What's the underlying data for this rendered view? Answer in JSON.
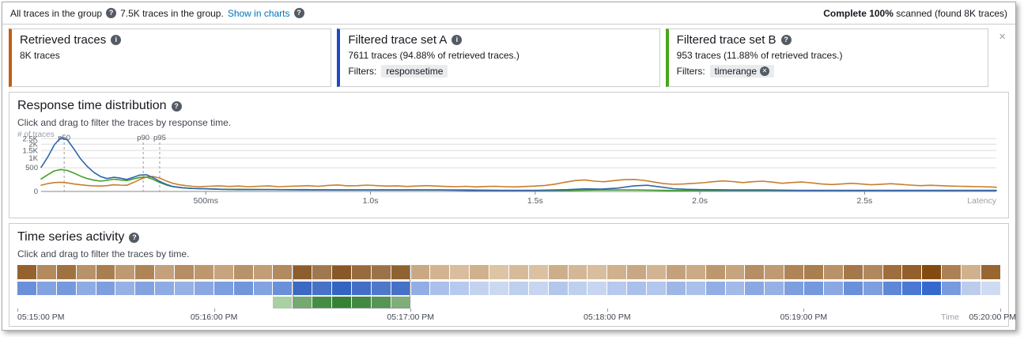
{
  "icons": {
    "help": "?",
    "info": "i",
    "close": "×",
    "remove": "✕"
  },
  "colors": {
    "link": "#0073bb",
    "retrieved_accent": "#c05f15",
    "set_a_accent": "#1d49c6",
    "set_b_accent": "#4aa51e",
    "orange_line": "#c87e2e",
    "blue_line": "#2f66ad",
    "green_line": "#43a02c",
    "grid": "#dddddd",
    "axis": "#888888"
  },
  "top_bar": {
    "group_label": "All traces in the group",
    "traces_text": "7.5K traces in the group.",
    "show_in_charts": "Show in charts",
    "scan_complete": "Complete 100%",
    "scan_detail": " scanned (found 8K traces)"
  },
  "cards": [
    {
      "title": "Retrieved traces",
      "count_text": "8K traces"
    },
    {
      "title": "Filtered trace set A",
      "count_text": "7611 traces (94.88% of retrieved traces.)",
      "filters_label": "Filters:",
      "filter_tag": "responsetime"
    },
    {
      "title": "Filtered trace set B",
      "count_text": "953 traces (11.88% of retrieved traces.)",
      "filters_label": "Filters:",
      "filter_tag": "timerange"
    }
  ],
  "response_chart": {
    "type": "line",
    "title": "Response time distribution",
    "subtitle": "Click and drag to filter the traces by response time.",
    "y_axis_label": "# of traces",
    "x_axis_label": "Latency",
    "y_scale": "sqrt",
    "y_max": 2750,
    "x_max_ms": 2900,
    "y_ticks": [
      {
        "value": 0,
        "label": "0"
      },
      {
        "value": 500,
        "label": "500"
      },
      {
        "value": 1000,
        "label": "1K"
      },
      {
        "value": 1500,
        "label": "1.5K"
      },
      {
        "value": 2000,
        "label": "2K"
      },
      {
        "value": 2500,
        "label": "2.5K"
      }
    ],
    "x_ticks": [
      {
        "ms": 500,
        "label": "500ms"
      },
      {
        "ms": 1000,
        "label": "1.0s"
      },
      {
        "ms": 1500,
        "label": "1.5s"
      },
      {
        "ms": 2000,
        "label": "2.0s"
      },
      {
        "ms": 2500,
        "label": "2.5s"
      }
    ],
    "percentiles": [
      {
        "label": "p50",
        "ms": 70
      },
      {
        "label": "p90",
        "ms": 310
      },
      {
        "label": "p95",
        "ms": 360
      }
    ],
    "series": [
      {
        "name": "retrieved",
        "color_key": "orange_line",
        "points": [
          [
            0,
            35
          ],
          [
            20,
            55
          ],
          [
            40,
            70
          ],
          [
            60,
            75
          ],
          [
            80,
            65
          ],
          [
            100,
            50
          ],
          [
            120,
            40
          ],
          [
            140,
            32
          ],
          [
            160,
            28
          ],
          [
            180,
            26
          ],
          [
            200,
            30
          ],
          [
            220,
            40
          ],
          [
            240,
            36
          ],
          [
            260,
            34
          ],
          [
            280,
            70
          ],
          [
            300,
            130
          ],
          [
            320,
            185
          ],
          [
            340,
            200
          ],
          [
            360,
            160
          ],
          [
            380,
            100
          ],
          [
            400,
            60
          ],
          [
            420,
            40
          ],
          [
            440,
            30
          ],
          [
            460,
            24
          ],
          [
            480,
            20
          ],
          [
            510,
            24
          ],
          [
            540,
            28
          ],
          [
            570,
            22
          ],
          [
            600,
            26
          ],
          [
            630,
            20
          ],
          [
            660,
            24
          ],
          [
            690,
            28
          ],
          [
            720,
            20
          ],
          [
            750,
            24
          ],
          [
            780,
            26
          ],
          [
            810,
            30
          ],
          [
            840,
            24
          ],
          [
            870,
            32
          ],
          [
            900,
            38
          ],
          [
            930,
            28
          ],
          [
            960,
            30
          ],
          [
            990,
            36
          ],
          [
            1020,
            30
          ],
          [
            1050,
            26
          ],
          [
            1080,
            28
          ],
          [
            1110,
            22
          ],
          [
            1140,
            26
          ],
          [
            1170,
            30
          ],
          [
            1200,
            26
          ],
          [
            1230,
            22
          ],
          [
            1260,
            20
          ],
          [
            1290,
            24
          ],
          [
            1320,
            18
          ],
          [
            1350,
            22
          ],
          [
            1380,
            24
          ],
          [
            1410,
            20
          ],
          [
            1440,
            18
          ],
          [
            1470,
            22
          ],
          [
            1500,
            26
          ],
          [
            1530,
            32
          ],
          [
            1560,
            48
          ],
          [
            1590,
            75
          ],
          [
            1620,
            105
          ],
          [
            1650,
            120
          ],
          [
            1680,
            95
          ],
          [
            1710,
            85
          ],
          [
            1740,
            105
          ],
          [
            1770,
            125
          ],
          [
            1800,
            130
          ],
          [
            1830,
            110
          ],
          [
            1860,
            80
          ],
          [
            1890,
            55
          ],
          [
            1920,
            45
          ],
          [
            1950,
            50
          ],
          [
            1980,
            58
          ],
          [
            2010,
            68
          ],
          [
            2040,
            85
          ],
          [
            2070,
            100
          ],
          [
            2100,
            88
          ],
          [
            2130,
            70
          ],
          [
            2160,
            85
          ],
          [
            2190,
            95
          ],
          [
            2220,
            78
          ],
          [
            2250,
            60
          ],
          [
            2280,
            72
          ],
          [
            2310,
            80
          ],
          [
            2340,
            65
          ],
          [
            2370,
            50
          ],
          [
            2400,
            42
          ],
          [
            2430,
            50
          ],
          [
            2460,
            60
          ],
          [
            2490,
            50
          ],
          [
            2520,
            40
          ],
          [
            2550,
            46
          ],
          [
            2580,
            54
          ],
          [
            2610,
            44
          ],
          [
            2640,
            36
          ],
          [
            2670,
            30
          ],
          [
            2700,
            34
          ],
          [
            2730,
            30
          ],
          [
            2760,
            26
          ],
          [
            2790,
            24
          ],
          [
            2820,
            22
          ],
          [
            2850,
            20
          ],
          [
            2880,
            18
          ],
          [
            2900,
            16
          ]
        ]
      },
      {
        "name": "set-b",
        "color_key": "green_line",
        "points": [
          [
            0,
            140
          ],
          [
            20,
            250
          ],
          [
            40,
            380
          ],
          [
            60,
            430
          ],
          [
            80,
            395
          ],
          [
            100,
            300
          ],
          [
            120,
            210
          ],
          [
            140,
            150
          ],
          [
            160,
            115
          ],
          [
            180,
            95
          ],
          [
            200,
            110
          ],
          [
            220,
            135
          ],
          [
            240,
            120
          ],
          [
            260,
            105
          ],
          [
            280,
            140
          ],
          [
            300,
            175
          ],
          [
            320,
            185
          ],
          [
            340,
            130
          ],
          [
            360,
            70
          ],
          [
            380,
            38
          ],
          [
            400,
            20
          ],
          [
            430,
            12
          ],
          [
            460,
            8
          ],
          [
            500,
            6
          ],
          [
            550,
            4
          ],
          [
            600,
            4
          ],
          [
            700,
            3
          ],
          [
            800,
            3
          ],
          [
            900,
            2
          ],
          [
            1000,
            2
          ],
          [
            1100,
            2
          ],
          [
            1200,
            2
          ],
          [
            1300,
            2
          ],
          [
            1400,
            1
          ],
          [
            1500,
            1
          ],
          [
            1600,
            1
          ],
          [
            1700,
            2
          ],
          [
            1800,
            2
          ],
          [
            1900,
            1
          ],
          [
            2000,
            1
          ],
          [
            2100,
            1
          ],
          [
            2200,
            1
          ],
          [
            2300,
            1
          ],
          [
            2400,
            1
          ],
          [
            2500,
            1
          ],
          [
            2600,
            1
          ],
          [
            2700,
            1
          ],
          [
            2800,
            1
          ],
          [
            2900,
            1
          ]
        ]
      },
      {
        "name": "set-a",
        "color_key": "blue_line",
        "points": [
          [
            0,
            520
          ],
          [
            20,
            1050
          ],
          [
            40,
            1950
          ],
          [
            60,
            2600
          ],
          [
            80,
            2380
          ],
          [
            100,
            1600
          ],
          [
            120,
            950
          ],
          [
            140,
            560
          ],
          [
            160,
            330
          ],
          [
            180,
            200
          ],
          [
            200,
            150
          ],
          [
            220,
            180
          ],
          [
            240,
            160
          ],
          [
            260,
            130
          ],
          [
            280,
            180
          ],
          [
            300,
            240
          ],
          [
            320,
            250
          ],
          [
            340,
            170
          ],
          [
            360,
            90
          ],
          [
            380,
            45
          ],
          [
            400,
            22
          ],
          [
            430,
            12
          ],
          [
            460,
            8
          ],
          [
            500,
            6
          ],
          [
            550,
            4
          ],
          [
            600,
            3
          ],
          [
            700,
            3
          ],
          [
            800,
            2
          ],
          [
            900,
            2
          ],
          [
            1000,
            2
          ],
          [
            1100,
            2
          ],
          [
            1200,
            2
          ],
          [
            1300,
            1
          ],
          [
            1400,
            1
          ],
          [
            1500,
            1
          ],
          [
            1600,
            3
          ],
          [
            1650,
            6
          ],
          [
            1700,
            5
          ],
          [
            1750,
            10
          ],
          [
            1800,
            28
          ],
          [
            1840,
            34
          ],
          [
            1880,
            18
          ],
          [
            1920,
            7
          ],
          [
            1960,
            4
          ],
          [
            2000,
            3
          ],
          [
            2100,
            2
          ],
          [
            2200,
            2
          ],
          [
            2300,
            1
          ],
          [
            2400,
            1
          ],
          [
            2500,
            1
          ],
          [
            2600,
            1
          ],
          [
            2700,
            1
          ],
          [
            2800,
            1
          ],
          [
            2900,
            1
          ]
        ]
      }
    ]
  },
  "time_panel": {
    "type": "heatmap",
    "title": "Time series activity",
    "subtitle": "Click and drag to filter the traces by time.",
    "x_axis_label": "Time",
    "time_labels": [
      "05:15:00 PM",
      "05:16:00 PM",
      "05:17:00 PM",
      "05:18:00 PM",
      "05:19:00 PM",
      "05:20:00 PM"
    ],
    "cell_count": 50,
    "selection": {
      "start_index": 14,
      "end_index": 20
    },
    "rows": [
      {
        "name": "retrieved",
        "light": "#f2e0c8",
        "dark": "#7e4307",
        "values": [
          0.8,
          0.55,
          0.7,
          0.5,
          0.62,
          0.45,
          0.58,
          0.4,
          0.52,
          0.46,
          0.38,
          0.5,
          0.42,
          0.55,
          0.88,
          0.68,
          0.92,
          0.78,
          0.72,
          0.85,
          0.35,
          0.28,
          0.22,
          0.3,
          0.18,
          0.24,
          0.2,
          0.32,
          0.26,
          0.22,
          0.3,
          0.36,
          0.28,
          0.4,
          0.34,
          0.46,
          0.38,
          0.52,
          0.44,
          0.58,
          0.62,
          0.5,
          0.66,
          0.56,
          0.72,
          0.82,
          0.95,
          0.6,
          0.3,
          0.78
        ]
      },
      {
        "name": "set-a",
        "light": "#e7edf8",
        "dark": "#1e57c8",
        "values": [
          0.62,
          0.5,
          0.56,
          0.44,
          0.52,
          0.4,
          0.5,
          0.44,
          0.4,
          0.46,
          0.52,
          0.58,
          0.5,
          0.62,
          0.92,
          0.85,
          0.96,
          0.88,
          0.8,
          0.86,
          0.42,
          0.3,
          0.24,
          0.18,
          0.14,
          0.2,
          0.16,
          0.26,
          0.2,
          0.16,
          0.24,
          0.3,
          0.26,
          0.36,
          0.3,
          0.42,
          0.34,
          0.46,
          0.4,
          0.52,
          0.56,
          0.46,
          0.62,
          0.52,
          0.68,
          0.78,
          0.88,
          0.55,
          0.22,
          0.12
        ]
      },
      {
        "name": "set-b",
        "light": "#d8ebcf",
        "dark": "#1f7a1f",
        "values": [
          null,
          null,
          null,
          null,
          null,
          null,
          null,
          null,
          null,
          null,
          null,
          null,
          null,
          0.25,
          0.55,
          0.85,
          0.95,
          0.88,
          0.75,
          0.5,
          null,
          null,
          null,
          null,
          null,
          null,
          null,
          null,
          null,
          null,
          null,
          null,
          null,
          null,
          null,
          null,
          null,
          null,
          null,
          null,
          null,
          null,
          null,
          null,
          null,
          null,
          null,
          null,
          null,
          null
        ]
      }
    ]
  }
}
